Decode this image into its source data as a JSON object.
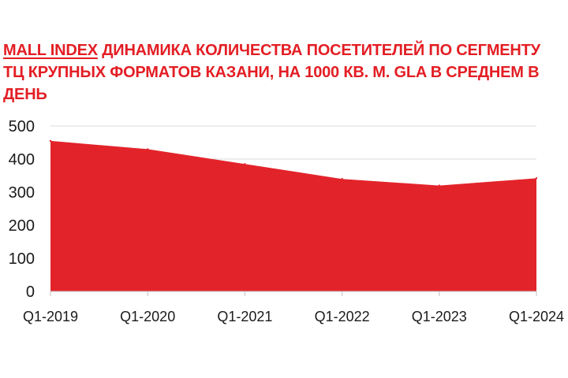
{
  "title": {
    "brand": "MALL INDEX",
    "text": " ДИНАМИКА КОЛИЧЕСТВА ПОСЕТИТЕЛЕЙ ПО СЕГМЕНТУ ТЦ КРУПНЫХ ФОРМАТОВ КАЗАНИ, НА 1000 КВ. М. GLA В СРЕДНЕМ В ДЕНЬ"
  },
  "colors": {
    "accent": "#e31e24",
    "area_fill": "#e3232a",
    "grid": "#d9d9d9",
    "axis": "#bfbfbf",
    "tick_text": "#1a1a1a"
  },
  "chart_data": {
    "type": "area",
    "title": "MALL INDEX ДИНАМИКА КОЛИЧЕСТВА ПОСЕТИТЕЛЕЙ ПО СЕГМЕНТУ ТЦ КРУПНЫХ ФОРМАТОВ КАЗАНИ, НА 1000 КВ. М. GLA В СРЕДНЕМ В ДЕНЬ",
    "xlabel": "",
    "ylabel": "",
    "categories": [
      "Q1-2019",
      "Q1-2020",
      "Q1-2021",
      "Q1-2022",
      "Q1-2023",
      "Q1-2024"
    ],
    "x_tick_labels": [
      "Q1-2019",
      "Q1-2020",
      "Q1-2021",
      "Q1-2022",
      "Q1-2023",
      "Q1-2024"
    ],
    "series": [
      {
        "values": [
          455,
          430,
          385,
          340,
          320,
          342
        ]
      }
    ],
    "ylim": [
      0,
      500
    ],
    "y_ticks": [
      0,
      100,
      200,
      300,
      400,
      500
    ],
    "grid": true,
    "legend": "none"
  }
}
